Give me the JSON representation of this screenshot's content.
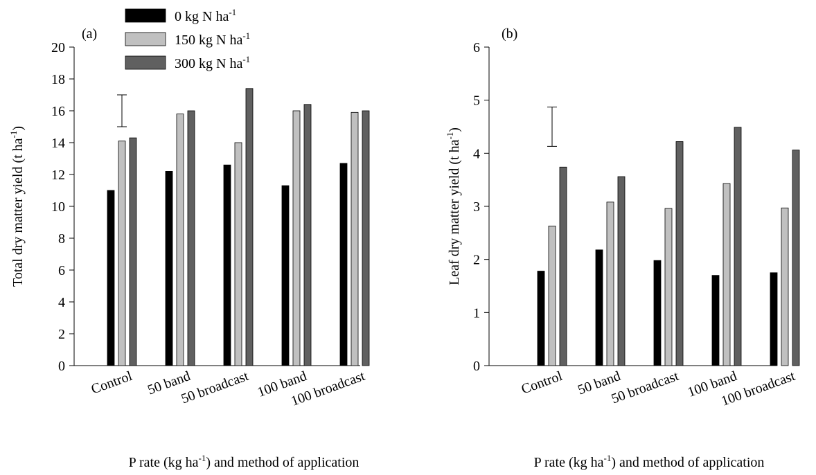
{
  "legend": [
    {
      "label": "0 kg N ha",
      "sup": "-1",
      "color": "#000000"
    },
    {
      "label": "150 kg N ha",
      "sup": "-1",
      "color": "#c0c0c0"
    },
    {
      "label": "300 kg N ha",
      "sup": "-1",
      "color": "#606060"
    }
  ],
  "chart_data": [
    {
      "type": "bar",
      "panel_label": "(a)",
      "categories": [
        "Control",
        "50 band",
        "50 broadcast",
        "100 band",
        "100 broadcast"
      ],
      "series": [
        {
          "name": "0 kg N ha-1",
          "values": [
            11.0,
            12.2,
            12.6,
            11.3,
            12.7
          ]
        },
        {
          "name": "150 kg N ha-1",
          "values": [
            14.1,
            15.8,
            14.0,
            16.0,
            15.9
          ]
        },
        {
          "name": "300 kg N ha-1",
          "values": [
            14.3,
            16.0,
            17.4,
            16.4,
            16.0
          ]
        }
      ],
      "ylim": [
        0,
        20
      ],
      "yticks": [
        0,
        2,
        4,
        6,
        8,
        10,
        12,
        14,
        16,
        18,
        20
      ],
      "ylabel": {
        "main": "Total dry matter yield (t ha",
        "sup": "-1",
        "tail": ")"
      },
      "xlabel": {
        "main": "P rate (kg ha",
        "sup": "-1",
        "tail": ") and method of application"
      },
      "error_bar": {
        "low": 15.0,
        "high": 17.0
      }
    },
    {
      "type": "bar",
      "panel_label": "(b)",
      "categories": [
        "Control",
        "50 band",
        "50 broadcast",
        "100 band",
        "100 broadcast"
      ],
      "series": [
        {
          "name": "0 kg N ha-1",
          "values": [
            1.78,
            2.18,
            1.98,
            1.7,
            1.75
          ]
        },
        {
          "name": "150 kg N ha-1",
          "values": [
            2.63,
            3.08,
            2.96,
            3.43,
            2.97
          ]
        },
        {
          "name": "300 kg N ha-1",
          "values": [
            3.74,
            3.56,
            4.22,
            4.49,
            4.06
          ]
        }
      ],
      "ylim": [
        0,
        6
      ],
      "yticks": [
        0,
        1,
        2,
        3,
        4,
        5,
        6
      ],
      "ylabel": {
        "main": "Leaf dry matter yield (t ha",
        "sup": "-1",
        "tail": ")"
      },
      "xlabel": {
        "main": "P rate (kg ha",
        "sup": "-1",
        "tail": ") and method of application"
      },
      "error_bar": {
        "low": 4.13,
        "high": 4.87
      }
    }
  ]
}
